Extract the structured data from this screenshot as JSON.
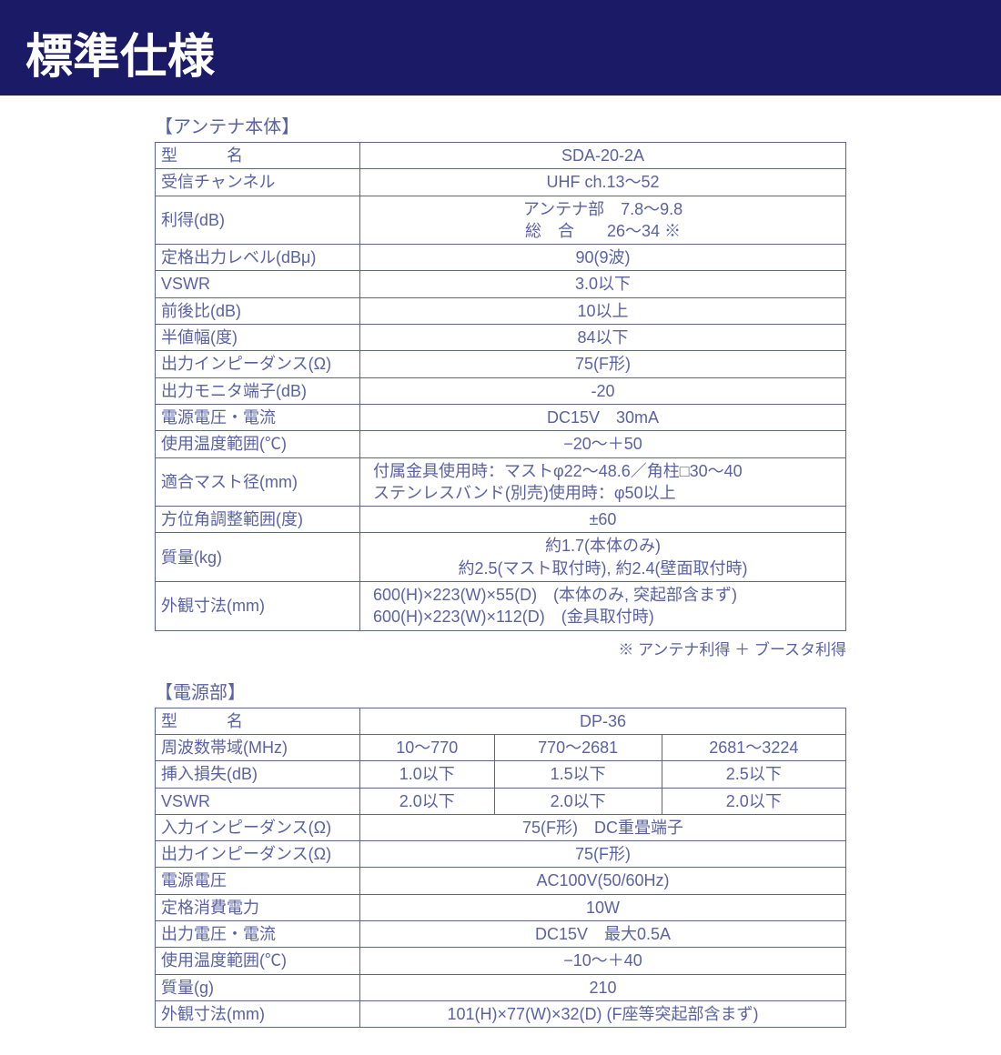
{
  "colors": {
    "header_bg": "#1a1a66",
    "header_fg": "#ffffff",
    "text": "#5a62a2",
    "border": "#5a62a2",
    "page_bg": "#ffffff"
  },
  "page_title": "標準仕様",
  "antenna": {
    "section_title": "【アンテナ本体】",
    "rows": [
      {
        "label_html": "<span class='model-label'>型</span><span class='model-last'>名</span>",
        "value": "SDA-20-2A",
        "align": "center"
      },
      {
        "label": "受信チャンネル",
        "value": "UHF ch.13〜52",
        "align": "center"
      },
      {
        "label": "利得(dB)",
        "value": "アンテナ部　7.8〜9.8<br>総　合　　26〜34 ※",
        "align": "center"
      },
      {
        "label": "定格出力レベル(dBμ)",
        "value": "90(9波)",
        "align": "center"
      },
      {
        "label": "VSWR",
        "value": "3.0以下",
        "align": "center"
      },
      {
        "label": "前後比(dB)",
        "value": "10以上",
        "align": "center"
      },
      {
        "label": "半値幅(度)",
        "value": "84以下",
        "align": "center"
      },
      {
        "label": "出力インピーダンス(Ω)",
        "value": "75(F形)",
        "align": "center"
      },
      {
        "label": "出力モニタ端子(dB)",
        "value": "-20",
        "align": "center"
      },
      {
        "label": "電源電圧・電流",
        "value": "DC15V　30mA",
        "align": "center"
      },
      {
        "label": "使用温度範囲(℃)",
        "value": "−20〜＋50",
        "align": "center"
      },
      {
        "label": "適合マスト径(mm)",
        "value": "付属金具使用時：マストφ22〜48.6／角柱□30〜40<br>ステンレスバンド(別売)使用時：φ50以上",
        "align": "left"
      },
      {
        "label": "方位角調整範囲(度)",
        "value": "±60",
        "align": "center"
      },
      {
        "label": "質量(kg)",
        "value": "約1.7(本体のみ)<br>約2.5(マスト取付時), 約2.4(壁面取付時)",
        "align": "center"
      },
      {
        "label": "外観寸法(mm)",
        "value": "600(H)×223(W)×55(D)　(本体のみ, 突起部含まず)<br>600(H)×223(W)×112(D)　(金具取付時)",
        "align": "left"
      }
    ],
    "note": "※ アンテナ利得 ＋ ブースタ利得"
  },
  "power": {
    "section_title": "【電源部】",
    "model_row": {
      "label_html": "<span class='model-label'>型</span><span class='model-last'>名</span>",
      "value": "DP-36"
    },
    "freq_row": {
      "label": "周波数帯域(MHz)",
      "cells": [
        "10〜770",
        "770〜2681",
        "2681〜3224"
      ]
    },
    "loss_row": {
      "label": "挿入損失(dB)",
      "cells": [
        "1.0以下",
        "1.5以下",
        "2.5以下"
      ]
    },
    "vswr_row": {
      "label": "VSWR",
      "cells": [
        "2.0以下",
        "2.0以下",
        "2.0以下"
      ]
    },
    "rest_rows": [
      {
        "label": "入力インピーダンス(Ω)",
        "value": "75(F形)　DC重畳端子"
      },
      {
        "label": "出力インピーダンス(Ω)",
        "value": "75(F形)"
      },
      {
        "label": "電源電圧",
        "value": "AC100V(50/60Hz)"
      },
      {
        "label": "定格消費電力",
        "value": "10W"
      },
      {
        "label": "出力電圧・電流",
        "value": "DC15V　最大0.5A"
      },
      {
        "label": "使用温度範囲(℃)",
        "value": "−10〜＋40"
      },
      {
        "label": "質量(g)",
        "value": "210"
      },
      {
        "label": "外観寸法(mm)",
        "value": "101(H)×77(W)×32(D) (F座等突起部含まず)"
      }
    ]
  }
}
